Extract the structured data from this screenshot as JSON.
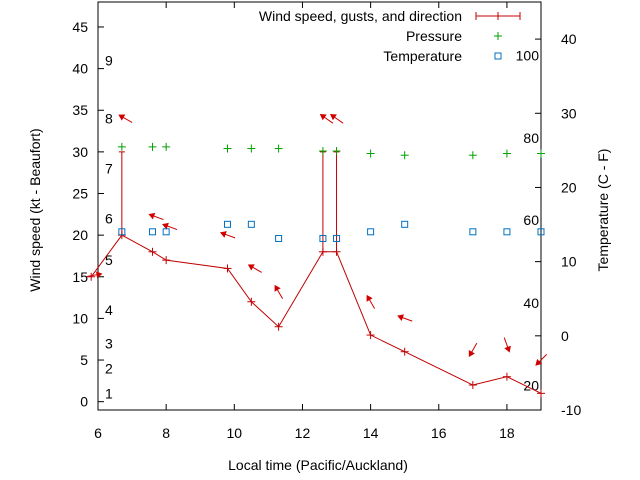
{
  "chart_data": {
    "type": "scatter",
    "xlabel": "Local time (Pacific/Auckland)",
    "ylabel": "Wind speed (kt - Beaufort)",
    "y2label": "Temperature (C - F)",
    "xlim": [
      6,
      19
    ],
    "ylim": [
      -1,
      48
    ],
    "y2lim": [
      -10,
      45
    ],
    "xticks": [
      6,
      8,
      10,
      12,
      14,
      16,
      18
    ],
    "yticks": [
      0,
      5,
      10,
      15,
      20,
      25,
      30,
      35,
      40,
      45
    ],
    "y2ticks": [
      -10,
      0,
      10,
      20,
      30,
      40
    ],
    "beaufort_labels": [
      {
        "label": "1",
        "y": 1
      },
      {
        "label": "2",
        "y": 4
      },
      {
        "label": "3",
        "y": 7
      },
      {
        "label": "4",
        "y": 11
      },
      {
        "label": "5",
        "y": 17
      },
      {
        "label": "6",
        "y": 22
      },
      {
        "label": "7",
        "y": 28
      },
      {
        "label": "8",
        "y": 34
      },
      {
        "label": "9",
        "y": 41
      }
    ],
    "fahrenheit_labels": [
      {
        "label": "20",
        "y2": -6.7
      },
      {
        "label": "40",
        "y2": 4.4
      },
      {
        "label": "60",
        "y2": 15.6
      },
      {
        "label": "80",
        "y2": 26.7
      },
      {
        "label": "100",
        "y2": 37.8
      }
    ],
    "legend_position": "top-right",
    "series": [
      {
        "name": "Wind speed, gusts, and direction",
        "color": "#c00000",
        "x": [
          5.8,
          6.7,
          7.6,
          8.0,
          9.8,
          10.5,
          11.3,
          12.6,
          13.0,
          14.0,
          15.0,
          17.0,
          18.0,
          19.0
        ],
        "values": [
          15,
          20,
          18,
          17,
          16,
          12,
          9,
          18,
          18,
          8,
          6,
          2,
          3,
          1
        ],
        "gusts": [
          null,
          30,
          null,
          null,
          null,
          null,
          null,
          30,
          30,
          null,
          null,
          null,
          null,
          null
        ]
      },
      {
        "name": "Pressure",
        "color": "#00a000",
        "x": [
          6.7,
          7.6,
          8.0,
          9.8,
          10.5,
          11.3,
          12.6,
          13.0,
          14.0,
          15.0,
          17.0,
          18.0,
          19.0
        ],
        "values": [
          30.6,
          30.6,
          30.6,
          30.4,
          30.4,
          30.4,
          30.1,
          30.1,
          29.8,
          29.6,
          29.6,
          29.8,
          29.8
        ]
      },
      {
        "name": "Temperature",
        "color": "#0070c0",
        "x": [
          6.7,
          7.6,
          8.0,
          9.8,
          10.5,
          11.3,
          12.6,
          13.0,
          14.0,
          15.0,
          17.0,
          18.0,
          19.0
        ],
        "values": [
          20.4,
          20.4,
          20.4,
          21.3,
          21.3,
          19.6,
          19.6,
          19.6,
          20.4,
          21.3,
          20.4,
          20.4,
          20.4
        ]
      }
    ],
    "wind_arrows": [
      {
        "x": 5.9,
        "y": 15.2,
        "dir_deg": 80
      },
      {
        "x": 6.8,
        "y": 34.0,
        "dir_deg": 300
      },
      {
        "x": 7.7,
        "y": 22.2,
        "dir_deg": 290
      },
      {
        "x": 8.1,
        "y": 21.0,
        "dir_deg": 290
      },
      {
        "x": 9.8,
        "y": 20.0,
        "dir_deg": 290
      },
      {
        "x": 10.6,
        "y": 16.0,
        "dir_deg": 300
      },
      {
        "x": 11.3,
        "y": 13.2,
        "dir_deg": 330
      },
      {
        "x": 12.7,
        "y": 34.0,
        "dir_deg": 305
      },
      {
        "x": 13.0,
        "y": 34.0,
        "dir_deg": 305
      },
      {
        "x": 14.0,
        "y": 12.0,
        "dir_deg": 330
      },
      {
        "x": 15.0,
        "y": 10.0,
        "dir_deg": 290
      },
      {
        "x": 17.0,
        "y": 6.2,
        "dir_deg": 210
      },
      {
        "x": 18.0,
        "y": 6.8,
        "dir_deg": 160
      },
      {
        "x": 19.0,
        "y": 5.0,
        "dir_deg": 225
      }
    ]
  }
}
